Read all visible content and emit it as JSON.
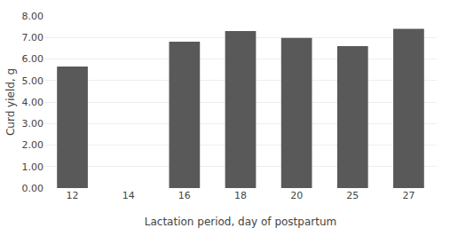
{
  "chart_data": {
    "type": "bar",
    "categories": [
      "12",
      "14",
      "16",
      "18",
      "20",
      "25",
      "27"
    ],
    "values": [
      5.65,
      0.0,
      6.8,
      7.3,
      6.98,
      6.6,
      7.4
    ],
    "color": "#595959",
    "xlabel": "Lactation period, day of postpartum",
    "ylabel": "Curd yield, g",
    "ylim": [
      0.0,
      8.0
    ],
    "yticks": [
      {
        "value": 0.0,
        "label": "0.00"
      },
      {
        "value": 1.0,
        "label": "1.00"
      },
      {
        "value": 2.0,
        "label": "2.00"
      },
      {
        "value": 3.0,
        "label": "3.00"
      },
      {
        "value": 4.0,
        "label": "4.00"
      },
      {
        "value": 5.0,
        "label": "5.00"
      },
      {
        "value": 6.0,
        "label": "6.00"
      },
      {
        "value": 7.0,
        "label": "7.00"
      },
      {
        "value": 8.0,
        "label": "8.00"
      }
    ],
    "grid": true
  }
}
